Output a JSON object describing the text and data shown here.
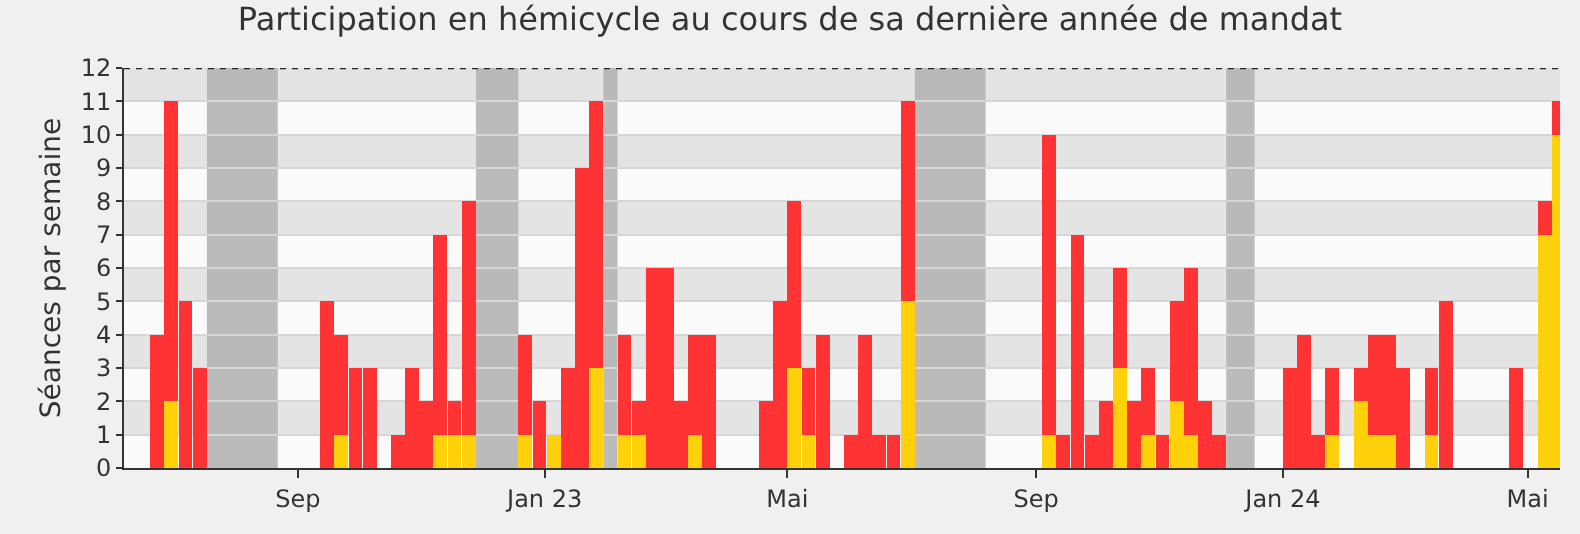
{
  "chart_data": {
    "type": "bar",
    "title": "Participation en hémicycle au cours de sa dernière année de mandat",
    "ylabel": "Séances par semaine",
    "stacked": true,
    "grid": "y",
    "x": [
      "2022-06-20",
      "2022-06-27",
      "2022-07-04",
      "2022-07-11",
      "2022-09-12",
      "2022-09-19",
      "2022-09-26",
      "2022-10-03",
      "2022-10-17",
      "2022-10-24",
      "2022-10-31",
      "2022-11-07",
      "2022-11-14",
      "2022-11-21",
      "2022-12-19",
      "2022-12-26",
      "2023-01-02",
      "2023-01-09",
      "2023-01-16",
      "2023-01-23",
      "2023-02-06",
      "2023-02-13",
      "2023-02-20",
      "2023-02-27",
      "2023-03-06",
      "2023-03-13",
      "2023-03-20",
      "2023-04-17",
      "2023-04-24",
      "2023-05-01",
      "2023-05-08",
      "2023-05-15",
      "2023-05-29",
      "2023-06-05",
      "2023-06-12",
      "2023-06-19",
      "2023-06-26",
      "2023-09-04",
      "2023-09-11",
      "2023-09-18",
      "2023-09-25",
      "2023-10-02",
      "2023-10-09",
      "2023-10-16",
      "2023-10-23",
      "2023-10-30",
      "2023-11-06",
      "2023-11-13",
      "2023-11-20",
      "2023-11-27",
      "2024-01-01",
      "2024-01-08",
      "2024-01-15",
      "2024-01-22",
      "2024-02-05",
      "2024-02-12",
      "2024-02-19",
      "2024-02-26",
      "2024-03-11",
      "2024-03-18",
      "2024-04-22",
      "2024-05-06",
      "2024-05-13"
    ],
    "series": [
      {
        "color": "#ffd10a",
        "values": [
          0,
          2,
          0,
          0,
          0,
          1,
          0,
          0,
          0,
          0,
          0,
          1,
          1,
          1,
          1,
          0,
          1,
          0,
          0,
          3,
          1,
          1,
          0,
          0,
          0,
          1,
          0,
          0,
          0,
          3,
          1,
          0,
          0,
          0,
          0,
          0,
          5,
          1,
          0,
          0,
          0,
          0,
          3,
          0,
          1,
          0,
          2,
          1,
          0,
          0,
          0,
          0,
          0,
          1,
          2,
          1,
          1,
          0,
          1,
          0,
          0,
          7,
          10
        ]
      },
      {
        "color": "#ff3333",
        "values": [
          4,
          9,
          5,
          3,
          5,
          3,
          3,
          3,
          1,
          3,
          2,
          6,
          1,
          7,
          3,
          2,
          0,
          3,
          9,
          8,
          3,
          1,
          6,
          6,
          2,
          3,
          4,
          2,
          5,
          5,
          2,
          4,
          1,
          4,
          1,
          1,
          6,
          9,
          1,
          7,
          1,
          2,
          3,
          2,
          2,
          1,
          3,
          5,
          2,
          1,
          3,
          4,
          1,
          2,
          1,
          3,
          3,
          3,
          2,
          5,
          3,
          1,
          1
        ]
      }
    ],
    "xlim": [
      "2022-06-07",
      "2024-05-17"
    ],
    "xticks": [
      {
        "value": "2022-09-01",
        "label": "Sep"
      },
      {
        "value": "2023-01-01",
        "label": "Jan 23"
      },
      {
        "value": "2023-05-01",
        "label": "Mai"
      },
      {
        "value": "2023-09-01",
        "label": "Sep"
      },
      {
        "value": "2024-01-01",
        "label": "Jan 24"
      },
      {
        "value": "2024-05-01",
        "label": "Mai"
      }
    ],
    "ylim": [
      0,
      12
    ],
    "yticks": [
      0,
      1,
      2,
      3,
      4,
      5,
      6,
      7,
      8,
      9,
      10,
      11,
      12
    ],
    "bands": [
      {
        "axis": "x",
        "from": "2022-07-18",
        "to": "2022-08-22",
        "color": "#b4b4b4"
      },
      {
        "axis": "x",
        "from": "2022-11-28",
        "to": "2022-12-19",
        "color": "#b4b4b4"
      },
      {
        "axis": "x",
        "from": "2023-01-30",
        "to": "2023-02-06",
        "color": "#b4b4b4"
      },
      {
        "axis": "x",
        "from": "2023-07-03",
        "to": "2023-08-07",
        "color": "#b4b4b4"
      },
      {
        "axis": "x",
        "from": "2023-12-04",
        "to": "2023-12-18",
        "color": "#b4b4b4"
      }
    ]
  }
}
